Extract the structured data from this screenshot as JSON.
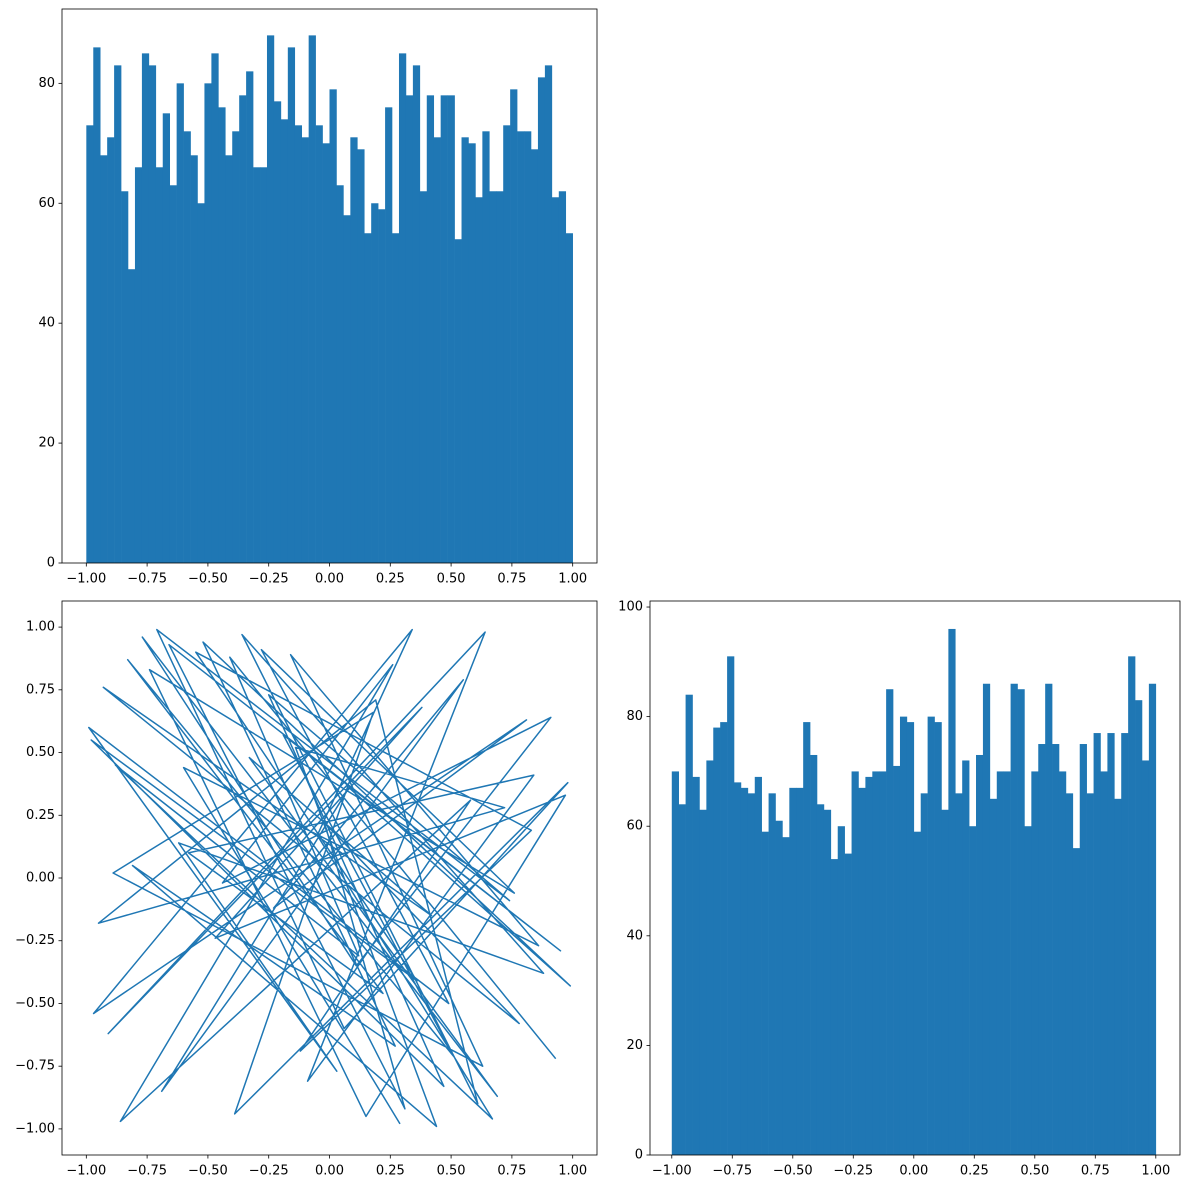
{
  "chart_data": [
    {
      "type": "histogram",
      "color": "#1f77b4",
      "bins": [
        -1,
        -0.9714,
        -0.9429,
        -0.9143,
        -0.8857,
        -0.8571,
        -0.8286,
        -0.8,
        -0.7714,
        -0.7429,
        -0.7143,
        -0.6857,
        -0.6571,
        -0.6286,
        -0.6,
        -0.5714,
        -0.5429,
        -0.5143,
        -0.4857,
        -0.4571,
        -0.4286,
        -0.4,
        -0.3714,
        -0.3429,
        -0.3143,
        -0.2857,
        -0.2571,
        -0.2286,
        -0.2,
        -0.1714,
        -0.1429,
        -0.1143,
        -0.0857,
        -0.0571,
        -0.0286,
        0,
        0.0286,
        0.0571,
        0.0857,
        0.1143,
        0.1429,
        0.1714,
        0.2,
        0.2286,
        0.2571,
        0.2857,
        0.3143,
        0.3429,
        0.3714,
        0.4,
        0.4286,
        0.4571,
        0.4857,
        0.5143,
        0.5429,
        0.5714,
        0.6,
        0.6286,
        0.6571,
        0.6857,
        0.7143,
        0.7429,
        0.7714,
        0.8,
        0.8286,
        0.8571,
        0.8857,
        0.9143,
        0.9429,
        0.9714,
        1
      ],
      "values": [
        73,
        86,
        68,
        71,
        83,
        62,
        49,
        66,
        85,
        83,
        66,
        75,
        63,
        80,
        72,
        68,
        60,
        80,
        85,
        76,
        68,
        72,
        78,
        82,
        66,
        66,
        88,
        77,
        74,
        86,
        73,
        71,
        88,
        73,
        70,
        79,
        63,
        58,
        71,
        69,
        55,
        60,
        59,
        76,
        55,
        85,
        78,
        83,
        62,
        78,
        71,
        78,
        78,
        54,
        71,
        70,
        61,
        72,
        62,
        62,
        73,
        79,
        72,
        72,
        69,
        81,
        83,
        61,
        62,
        55
      ],
      "xlim": [
        -1.1,
        1.1
      ],
      "ylim": [
        0,
        92.4
      ],
      "xticks": [
        {
          "value": -1,
          "label": "−1.00"
        },
        {
          "value": -0.75,
          "label": "−0.75"
        },
        {
          "value": -0.5,
          "label": "−0.50"
        },
        {
          "value": -0.25,
          "label": "−0.25"
        },
        {
          "value": 0,
          "label": "0.00"
        },
        {
          "value": 0.25,
          "label": "0.25"
        },
        {
          "value": 0.5,
          "label": "0.50"
        },
        {
          "value": 0.75,
          "label": "0.75"
        },
        {
          "value": 1,
          "label": "1.00"
        }
      ],
      "yticks": [
        0,
        20,
        40,
        60,
        80
      ]
    },
    {
      "type": "line",
      "color": "#1f77b4",
      "x": [
        0.93,
        -0.41,
        0.12,
        -0.88,
        0.67,
        -0.05,
        0.34,
        -0.97,
        0.81,
        -0.23,
        0.55,
        -0.69,
        0.08,
        0.99,
        -0.52,
        0.27,
        -0.81,
        0.44,
        -0.14,
        0.72,
        -0.95,
        0.19,
        0.61,
        -0.36,
        0.88,
        -0.62,
        0.03,
        -0.99,
        0.49,
        -0.28,
        0.76,
        -0.74,
        0.15,
        0.97,
        -0.47,
        0.38,
        -0.91,
        0.64,
        -0.09,
        0.84,
        -0.58,
        0.22,
        -0.83,
        0.51,
        -0.19,
        0.95,
        -0.66,
        0.31,
        -0.02,
        0.78,
        -0.93,
        0.42,
        -0.33,
        0.69,
        -0.77,
        0.11,
        0.91,
        -0.44,
        0.26,
        -0.86,
        0.58,
        -0.12,
        0.83,
        -0.55,
        0.36,
        -0.98,
        0.47,
        -0.25,
        0.74,
        -0.71,
        0.06,
        0.98,
        -0.39,
        0.18,
        -0.89,
        0.63,
        -0.16,
        0.86,
        -0.6,
        0.29
      ],
      "y": [
        -0.72,
        0.88,
        -0.31,
        0.45,
        -0.96,
        0.17,
        0.99,
        -0.54,
        0.63,
        -0.12,
        0.79,
        -0.85,
        0.36,
        -0.43,
        0.94,
        -0.67,
        0.05,
        -0.99,
        0.52,
        0.28,
        -0.18,
        0.71,
        -0.9,
        0.97,
        -0.38,
        0.14,
        -0.77,
        0.6,
        -0.5,
        0.91,
        -0.06,
        0.83,
        -0.95,
        0.33,
        -0.24,
        0.68,
        -0.62,
        0.98,
        -0.81,
        0.41,
        0.1,
        -0.46,
        0.87,
        -0.71,
        0.57,
        -0.29,
        0.93,
        -0.92,
        0.22,
        -0.58,
        0.76,
        -0.15,
        0.48,
        -0.87,
        0.96,
        -0.35,
        0.64,
        -0.02,
        0.85,
        -0.97,
        0.31,
        -0.69,
        0.19,
        0.9,
        -0.41,
        0.55,
        -0.83,
        0.73,
        -0.09,
        0.99,
        -0.6,
        0.38,
        -0.94,
        0.66,
        0.02,
        -0.75,
        0.89,
        -0.27,
        0.44,
        -0.98
      ],
      "xlim": [
        -1.1,
        1.1
      ],
      "ylim": [
        -1.104,
        1.104
      ],
      "xticks": [
        {
          "value": -1,
          "label": "−1.00"
        },
        {
          "value": -0.75,
          "label": "−0.75"
        },
        {
          "value": -0.5,
          "label": "−0.50"
        },
        {
          "value": -0.25,
          "label": "−0.25"
        },
        {
          "value": 0,
          "label": "0.00"
        },
        {
          "value": 0.25,
          "label": "0.25"
        },
        {
          "value": 0.5,
          "label": "0.50"
        },
        {
          "value": 0.75,
          "label": "0.75"
        },
        {
          "value": 1,
          "label": "1.00"
        }
      ],
      "yticks": [
        {
          "value": -1,
          "label": "−1.00"
        },
        {
          "value": -0.75,
          "label": "−0.75"
        },
        {
          "value": -0.5,
          "label": "−0.50"
        },
        {
          "value": -0.25,
          "label": "−0.25"
        },
        {
          "value": 0,
          "label": "0.00"
        },
        {
          "value": 0.25,
          "label": "0.25"
        },
        {
          "value": 0.5,
          "label": "0.50"
        },
        {
          "value": 0.75,
          "label": "0.75"
        },
        {
          "value": 1,
          "label": "1.00"
        }
      ]
    },
    {
      "type": "histogram",
      "color": "#1f77b4",
      "bins": [
        -1,
        -0.9714,
        -0.9429,
        -0.9143,
        -0.8857,
        -0.8571,
        -0.8286,
        -0.8,
        -0.7714,
        -0.7429,
        -0.7143,
        -0.6857,
        -0.6571,
        -0.6286,
        -0.6,
        -0.5714,
        -0.5429,
        -0.5143,
        -0.4857,
        -0.4571,
        -0.4286,
        -0.4,
        -0.3714,
        -0.3429,
        -0.3143,
        -0.2857,
        -0.2571,
        -0.2286,
        -0.2,
        -0.1714,
        -0.1429,
        -0.1143,
        -0.0857,
        -0.0571,
        -0.0286,
        0,
        0.0286,
        0.0571,
        0.0857,
        0.1143,
        0.1429,
        0.1714,
        0.2,
        0.2286,
        0.2571,
        0.2857,
        0.3143,
        0.3429,
        0.3714,
        0.4,
        0.4286,
        0.4571,
        0.4857,
        0.5143,
        0.5429,
        0.5714,
        0.6,
        0.6286,
        0.6571,
        0.6857,
        0.7143,
        0.7429,
        0.7714,
        0.8,
        0.8286,
        0.8571,
        0.8857,
        0.9143,
        0.9429,
        0.9714,
        1
      ],
      "values": [
        70,
        64,
        84,
        69,
        63,
        72,
        78,
        79,
        91,
        68,
        67,
        66,
        69,
        59,
        66,
        61,
        58,
        67,
        67,
        79,
        73,
        64,
        63,
        54,
        60,
        55,
        70,
        67,
        69,
        70,
        70,
        85,
        71,
        80,
        79,
        59,
        66,
        80,
        79,
        63,
        96,
        66,
        72,
        60,
        73,
        86,
        65,
        70,
        70,
        86,
        85,
        60,
        70,
        75,
        86,
        75,
        70,
        66,
        56,
        75,
        66,
        77,
        70,
        77,
        65,
        77,
        91,
        83,
        72,
        86
      ],
      "xlim": [
        -1.09,
        1.1
      ],
      "ylim": [
        0,
        101.1
      ],
      "xticks": [
        {
          "value": -1,
          "label": "−1.00"
        },
        {
          "value": -0.75,
          "label": "−0.75"
        },
        {
          "value": -0.5,
          "label": "−0.50"
        },
        {
          "value": -0.25,
          "label": "−0.25"
        },
        {
          "value": 0,
          "label": "0.00"
        },
        {
          "value": 0.25,
          "label": "0.25"
        },
        {
          "value": 0.5,
          "label": "0.50"
        },
        {
          "value": 0.75,
          "label": "0.75"
        },
        {
          "value": 1,
          "label": "1.00"
        }
      ],
      "yticks": [
        0,
        20,
        40,
        60,
        80,
        100
      ]
    }
  ]
}
